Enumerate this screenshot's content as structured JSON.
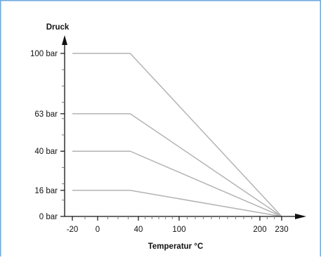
{
  "colors": {
    "frame": "#6fa8dc",
    "axis": "#111111",
    "series": "#b3b3b3"
  },
  "chart_data": {
    "type": "line",
    "ylabel": "Druck",
    "xlabel": "Temperatur °C",
    "x_ticks": [
      {
        "value": -20,
        "label": "-20"
      },
      {
        "value": 0,
        "label": "0"
      },
      {
        "value": 40,
        "label": "40"
      },
      {
        "value": 100,
        "label": "100"
      },
      {
        "value": 200,
        "label": "200"
      },
      {
        "value": 230,
        "label": "230"
      }
    ],
    "y_ticks": [
      {
        "value": 0,
        "label": "0 bar"
      },
      {
        "value": 16,
        "label": "16 bar"
      },
      {
        "value": 40,
        "label": "40 bar"
      },
      {
        "value": 63,
        "label": "63 bar"
      },
      {
        "value": 100,
        "label": "100 bar"
      }
    ],
    "xlim": [
      -20,
      230
    ],
    "ylim": [
      0,
      100
    ],
    "grid": false,
    "series": [
      {
        "x": [
          -20,
          32,
          230
        ],
        "y": [
          100,
          100,
          0
        ]
      },
      {
        "x": [
          -20,
          32,
          230
        ],
        "y": [
          63,
          63,
          0
        ]
      },
      {
        "x": [
          -20,
          32,
          230
        ],
        "y": [
          40,
          40,
          0
        ]
      },
      {
        "x": [
          -20,
          32,
          230
        ],
        "y": [
          16,
          16,
          0
        ]
      }
    ]
  }
}
